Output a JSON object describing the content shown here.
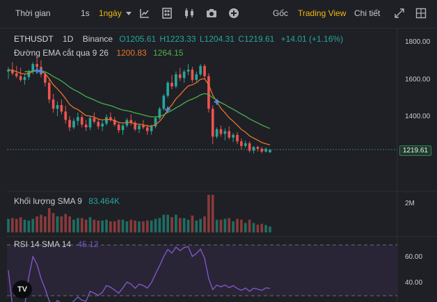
{
  "toolbar": {
    "time_label": "Thời gian",
    "interval_1s": "1s",
    "interval_selected": "1ngày",
    "tab_original": "Gốc",
    "tab_tradingview": "Trading View",
    "tab_depth": "Chi tiết"
  },
  "legend": {
    "symbol": "ETHUSDT",
    "interval": "1D",
    "exchange": "Binance",
    "open": "O1205.61",
    "high": "H1223.33",
    "low": "L1204.31",
    "close": "C1219.61",
    "change": "+14.01 (+1.16%)",
    "ema_label": "Đường EMA cắt qua 9 26",
    "ema_fast": "1200.83",
    "ema_slow": "1264.15",
    "volume_label": "Khối lượng SMA 9",
    "volume_value": "83.464K",
    "rsi_label": "RSI 14 SMA 14",
    "rsi_value": "45.12"
  },
  "price_axis": {
    "ticks": [
      "1800.00",
      "1600.00",
      "1400.00"
    ],
    "current_price": "1219.61"
  },
  "volume_axis": {
    "ticks": [
      "2M"
    ]
  },
  "rsi_axis": {
    "ticks": [
      "60.00",
      "40.00"
    ]
  },
  "logo_text": "TV",
  "colors": {
    "up": "#26a69a",
    "down": "#ef5350",
    "ema_fast": "#e8742a",
    "ema_slow": "#4caf50",
    "rsi": "#7e57c2",
    "accent": "#f0b90b"
  },
  "chart_data": {
    "type": "candlestick",
    "symbol": "ETHUSDT",
    "interval": "1D",
    "ohlc": [
      [
        1640,
        1665,
        1600,
        1650
      ],
      [
        1650,
        1690,
        1620,
        1630
      ],
      [
        1630,
        1670,
        1605,
        1615
      ],
      [
        1615,
        1660,
        1585,
        1595
      ],
      [
        1595,
        1630,
        1570,
        1610
      ],
      [
        1610,
        1650,
        1595,
        1640
      ],
      [
        1640,
        1690,
        1625,
        1680
      ],
      [
        1680,
        1720,
        1640,
        1665
      ],
      [
        1665,
        1700,
        1610,
        1625
      ],
      [
        1625,
        1640,
        1560,
        1580
      ],
      [
        1580,
        1600,
        1470,
        1490
      ],
      [
        1490,
        1520,
        1420,
        1440
      ],
      [
        1440,
        1480,
        1400,
        1460
      ],
      [
        1460,
        1490,
        1410,
        1425
      ],
      [
        1425,
        1455,
        1360,
        1380
      ],
      [
        1380,
        1400,
        1320,
        1340
      ],
      [
        1340,
        1390,
        1330,
        1375
      ],
      [
        1375,
        1420,
        1350,
        1395
      ],
      [
        1395,
        1410,
        1340,
        1355
      ],
      [
        1355,
        1380,
        1320,
        1340
      ],
      [
        1340,
        1400,
        1325,
        1390
      ],
      [
        1390,
        1420,
        1360,
        1370
      ],
      [
        1370,
        1385,
        1330,
        1345
      ],
      [
        1345,
        1375,
        1320,
        1360
      ],
      [
        1360,
        1410,
        1350,
        1395
      ],
      [
        1395,
        1420,
        1370,
        1380
      ],
      [
        1380,
        1395,
        1345,
        1355
      ],
      [
        1355,
        1370,
        1310,
        1325
      ],
      [
        1325,
        1360,
        1300,
        1350
      ],
      [
        1350,
        1390,
        1340,
        1380
      ],
      [
        1380,
        1410,
        1350,
        1365
      ],
      [
        1365,
        1375,
        1320,
        1330
      ],
      [
        1330,
        1360,
        1310,
        1350
      ],
      [
        1350,
        1380,
        1330,
        1340
      ],
      [
        1340,
        1355,
        1300,
        1320
      ],
      [
        1320,
        1355,
        1300,
        1345
      ],
      [
        1345,
        1400,
        1335,
        1390
      ],
      [
        1390,
        1450,
        1380,
        1440
      ],
      [
        1440,
        1520,
        1430,
        1510
      ],
      [
        1510,
        1590,
        1500,
        1580
      ],
      [
        1580,
        1620,
        1545,
        1560
      ],
      [
        1560,
        1640,
        1550,
        1625
      ],
      [
        1625,
        1660,
        1590,
        1605
      ],
      [
        1605,
        1650,
        1580,
        1640
      ],
      [
        1640,
        1680,
        1620,
        1650
      ],
      [
        1650,
        1665,
        1580,
        1595
      ],
      [
        1595,
        1640,
        1585,
        1625
      ],
      [
        1625,
        1680,
        1615,
        1670
      ],
      [
        1670,
        1680,
        1600,
        1615
      ],
      [
        1615,
        1630,
        1420,
        1440
      ],
      [
        1440,
        1460,
        1250,
        1290
      ],
      [
        1290,
        1340,
        1280,
        1330
      ],
      [
        1330,
        1350,
        1290,
        1305
      ],
      [
        1305,
        1335,
        1270,
        1320
      ],
      [
        1320,
        1345,
        1275,
        1285
      ],
      [
        1285,
        1310,
        1260,
        1300
      ],
      [
        1300,
        1315,
        1250,
        1265
      ],
      [
        1265,
        1280,
        1220,
        1240
      ],
      [
        1240,
        1270,
        1230,
        1255
      ],
      [
        1255,
        1265,
        1205,
        1215
      ],
      [
        1215,
        1240,
        1200,
        1235
      ],
      [
        1235,
        1240,
        1210,
        1225
      ],
      [
        1225,
        1235,
        1200,
        1210
      ],
      [
        1210,
        1232,
        1204,
        1225
      ],
      [
        1205.61,
        1223.33,
        1204.31,
        1219.61
      ]
    ],
    "ema_fast": {
      "name": "EMA 9",
      "last": 1200.83
    },
    "ema_slow": {
      "name": "EMA 26",
      "last": 1264.15
    },
    "volume_sma": {
      "name": "SMA 9",
      "last": "83.464K"
    },
    "rsi": {
      "name": "RSI 14",
      "last": 45.12,
      "levels": [
        70,
        30
      ]
    },
    "price_ticks": [
      1800,
      1600,
      1400
    ],
    "ylim": [
      1180,
      1880
    ]
  }
}
